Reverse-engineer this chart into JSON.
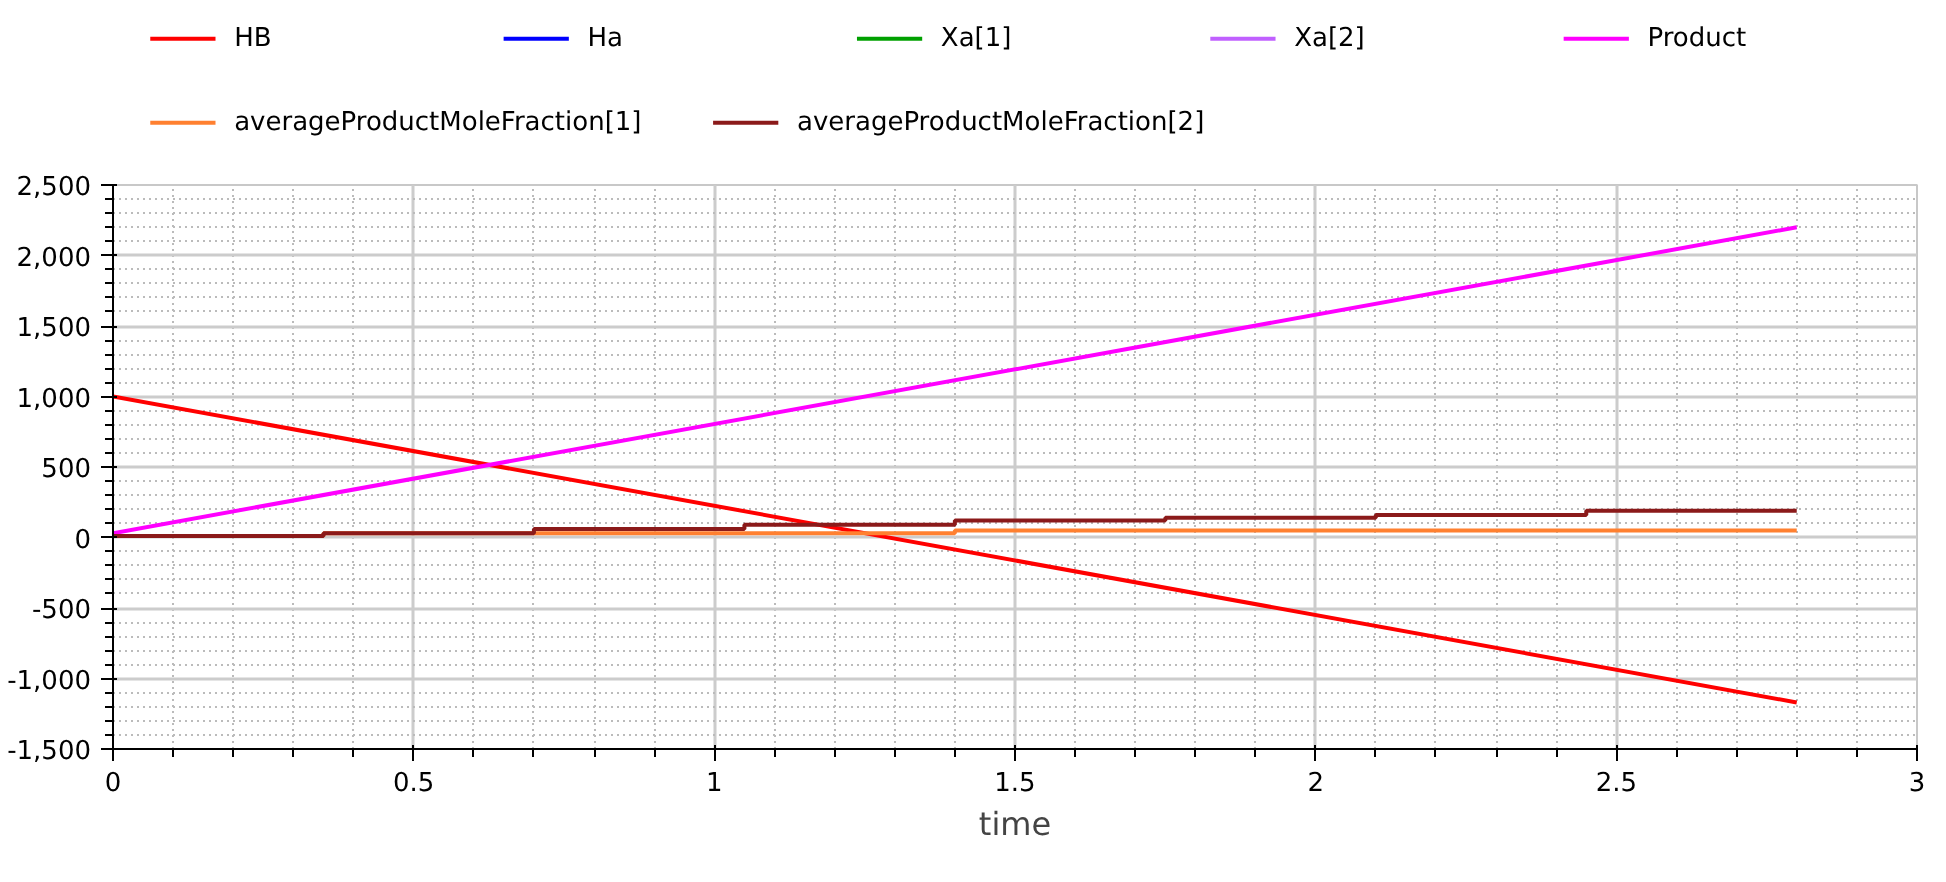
{
  "chart_data": {
    "type": "line",
    "xlabel": "time",
    "xlim": [
      0,
      3
    ],
    "ylim": [
      -1500,
      2500
    ],
    "xticks": [
      0,
      0.5,
      1,
      1.5,
      2,
      2.5,
      3
    ],
    "yticks": [
      {
        "value": -1500,
        "label": "-1,500"
      },
      {
        "value": -1000,
        "label": "-1,000"
      },
      -500,
      0,
      500,
      {
        "value": 1000,
        "label": "1,000"
      },
      {
        "value": 1500,
        "label": "1,500"
      },
      {
        "value": 2000,
        "label": "2,000"
      },
      {
        "value": 2500,
        "label": "2,500"
      }
    ],
    "grid": true,
    "legend": "top",
    "series": [
      {
        "name": "HB",
        "color": "#ff0000",
        "x": [
          0,
          2.8
        ],
        "values": [
          1000,
          -1170
        ]
      },
      {
        "name": "Ha",
        "color": "#0000ff"
      },
      {
        "name": "Xa[1]",
        "color": "#00a000"
      },
      {
        "name": "Xa[2]",
        "color": "#c060ff"
      },
      {
        "name": "Product",
        "color": "#ff00ff",
        "x": [
          0,
          2.8
        ],
        "values": [
          30,
          2200
        ]
      },
      {
        "name": "averageProductMoleFraction[1]",
        "color": "#ff8030",
        "type": "step",
        "x": [
          0,
          0.35,
          1.4,
          2.8
        ],
        "values": [
          10,
          30,
          50,
          50
        ]
      },
      {
        "name": "averageProductMoleFraction[2]",
        "color": "#8b1a1a",
        "type": "step",
        "x": [
          0,
          0.35,
          0.7,
          1.05,
          1.4,
          1.75,
          2.1,
          2.45,
          2.8
        ],
        "values": [
          10,
          30,
          60,
          90,
          120,
          140,
          160,
          190,
          190
        ]
      }
    ]
  }
}
